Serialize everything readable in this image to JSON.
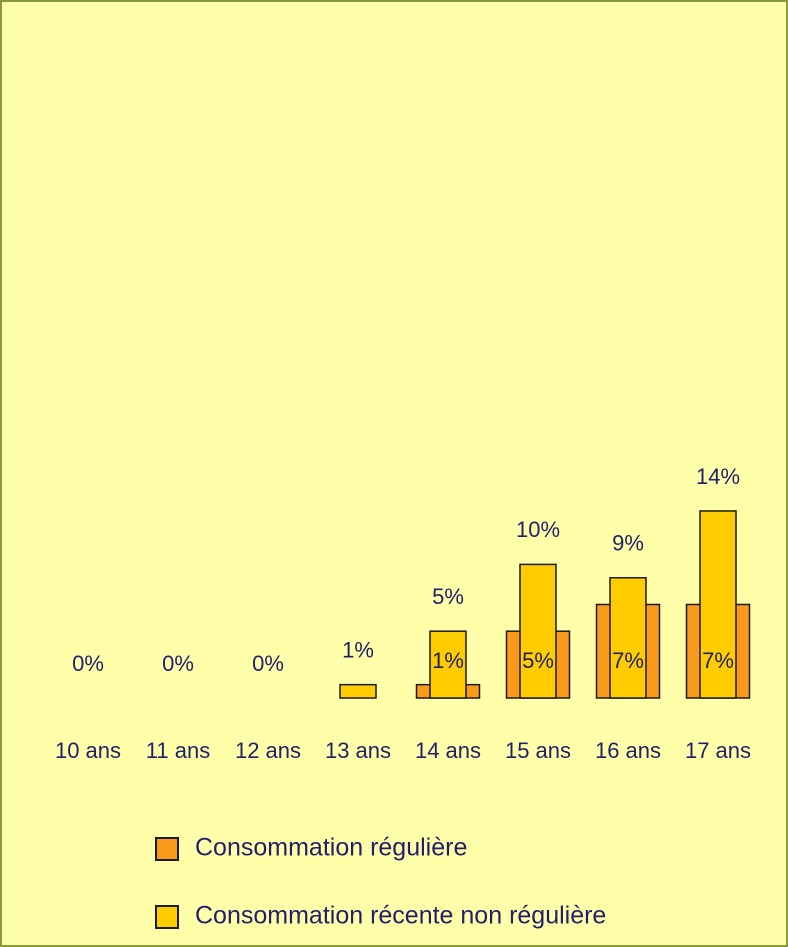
{
  "chart_data": {
    "type": "bar",
    "categories": [
      "10 ans",
      "11 ans",
      "12 ans",
      "13 ans",
      "14 ans",
      "15 ans",
      "16 ans",
      "17 ans"
    ],
    "series": [
      {
        "name": "Consommation régulière",
        "color": "#fa9a1a",
        "values": [
          0,
          0,
          0,
          0,
          1,
          5,
          7,
          7
        ],
        "value_labels": [
          null,
          null,
          null,
          null,
          "1%",
          "5%",
          "7%",
          "7%"
        ]
      },
      {
        "name": "Consommation récente non régulière",
        "color": "#ffcc00",
        "values": [
          0,
          0,
          0,
          1,
          5,
          10,
          9,
          14
        ],
        "value_labels": [
          "0%",
          "0%",
          "0%",
          "1%",
          "5%",
          "10%",
          "9%",
          "14%"
        ]
      }
    ],
    "ylim": [
      0,
      50
    ]
  }
}
